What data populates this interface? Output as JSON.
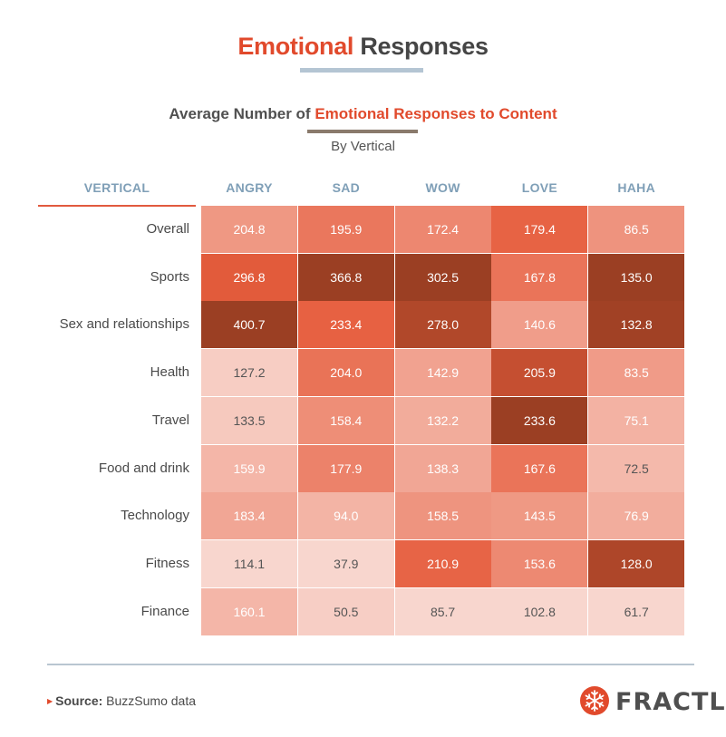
{
  "header": {
    "title_accent": "Emotional",
    "title_rest": " Responses",
    "subtitle_prefix": "Average Number of ",
    "subtitle_accent": "Emotional Responses to Content",
    "byline": "By Vertical"
  },
  "colors": {
    "accent": "#e14a2c",
    "header_blue": "#7f9fb7",
    "scale_low": "#fbe7e2",
    "scale_high": "#9b3f23"
  },
  "chart_data": {
    "type": "heatmap",
    "title": "Average Number of Emotional Responses to Content",
    "subtitle": "By Vertical",
    "row_header": "VERTICAL",
    "columns": [
      "ANGRY",
      "SAD",
      "WOW",
      "LOVE",
      "HAHA"
    ],
    "rows": [
      "Overall",
      "Sports",
      "Sex and relationships",
      "Health",
      "Travel",
      "Food and drink",
      "Technology",
      "Fitness",
      "Finance"
    ],
    "values": [
      [
        "204.8",
        "195.9",
        "172.4",
        "179.4",
        "86.5"
      ],
      [
        "296.8",
        "366.8",
        "302.5",
        "167.8",
        "135.0"
      ],
      [
        "400.7",
        "233.4",
        "278.0",
        "140.6",
        "132.8"
      ],
      [
        "127.2",
        "204.0",
        "142.9",
        "205.9",
        "83.5"
      ],
      [
        "133.5",
        "158.4",
        "132.2",
        "233.6",
        "75.1"
      ],
      [
        "159.9",
        "177.9",
        "138.3",
        "167.6",
        "72.5"
      ],
      [
        "183.4",
        "94.0",
        "158.5",
        "143.5",
        "76.9"
      ],
      [
        "114.1",
        "37.9",
        "210.9",
        "153.6",
        "128.0"
      ],
      [
        "160.1",
        "50.5",
        "85.7",
        "102.8",
        "61.7"
      ]
    ],
    "color_scale": "per-column"
  },
  "footer": {
    "source_label": "Source:",
    "source_text": " BuzzSumo data",
    "brand": "FRACTL",
    "brand_icon": "snowflake-logo-icon"
  }
}
